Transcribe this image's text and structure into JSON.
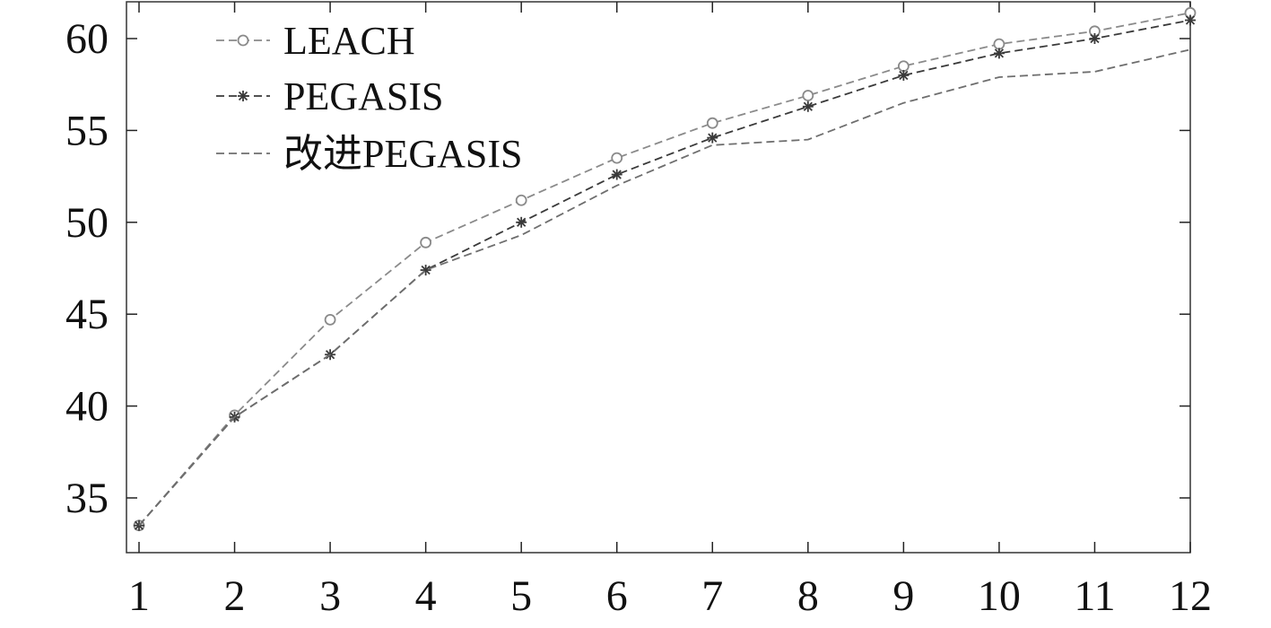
{
  "chart_data": {
    "type": "line",
    "title": "",
    "xlabel": "",
    "ylabel": "",
    "x": [
      1,
      2,
      3,
      4,
      5,
      6,
      7,
      8,
      9,
      10,
      11,
      12
    ],
    "xlim": [
      1,
      12
    ],
    "ylim": [
      32.5,
      62
    ],
    "y_ticks": [
      35,
      40,
      45,
      50,
      55,
      60
    ],
    "x_tick_labels": [
      "1",
      "2",
      "3",
      "4",
      "5",
      "6",
      "7",
      "8",
      "9",
      "10",
      "11",
      "12"
    ],
    "y_tick_labels": [
      "35",
      "40",
      "45",
      "50",
      "55",
      "60"
    ],
    "grid": false,
    "legend_position": "top-left",
    "series": [
      {
        "name": "LEACH",
        "marker": "circle",
        "color": "#8a8a8a",
        "values": [
          33.5,
          39.5,
          44.7,
          48.9,
          51.2,
          53.5,
          55.4,
          56.9,
          58.5,
          59.7,
          60.4,
          61.4
        ]
      },
      {
        "name": "PEGASIS",
        "marker": "star",
        "color": "#3a3a3a",
        "values": [
          33.5,
          39.4,
          42.8,
          47.4,
          50.0,
          52.6,
          54.6,
          56.3,
          58.0,
          59.2,
          60.0,
          61.0
        ]
      },
      {
        "name": "改进PEGASIS",
        "marker": "none",
        "color": "#6e6e6e",
        "values": [
          33.5,
          39.4,
          42.8,
          47.4,
          49.3,
          52.0,
          54.2,
          54.5,
          56.5,
          57.9,
          58.2,
          59.4
        ]
      }
    ]
  }
}
